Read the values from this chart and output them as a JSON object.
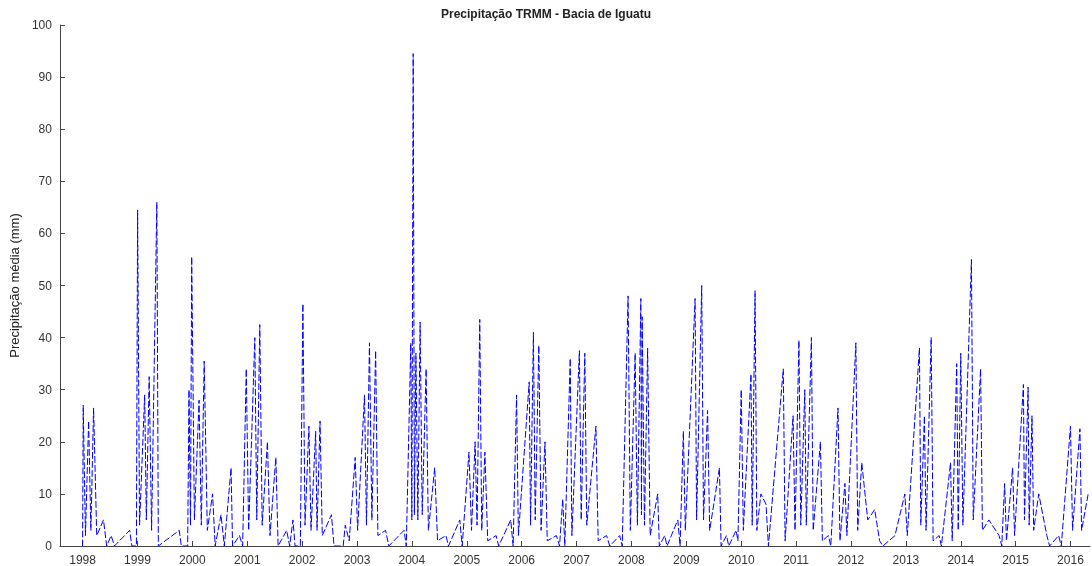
{
  "chart_data": {
    "type": "line",
    "title": "Precipitação TRMM - Bacia de Iguatu",
    "ylabel": "Precipitação média (mm)",
    "xlim": [
      "1997-08-03",
      "2016-05-10"
    ],
    "xticks": [
      "1998",
      "1999",
      "2000",
      "2001",
      "2002",
      "2003",
      "2004",
      "2005",
      "2006",
      "2007",
      "2008",
      "2009",
      "2010",
      "2011",
      "2012",
      "2013",
      "2014",
      "2015",
      "2016"
    ],
    "ylim": [
      0,
      100
    ],
    "yticks": [
      0,
      10,
      20,
      30,
      40,
      50,
      60,
      70,
      80,
      90,
      100
    ],
    "line_style": "dashed",
    "marker": "none",
    "series": [
      {
        "color": "#0000ff",
        "x": [
          "1998-01-01",
          "1998-01-05",
          "1998-01-20",
          "1998-02-10",
          "1998-02-25",
          "1998-03-15",
          "1998-04-05",
          "1998-05-20",
          "1998-06-10",
          "1998-07-10",
          "1998-08-01",
          "1998-11-10",
          "1998-11-25",
          "1998-12-25",
          "1999-01-02",
          "1999-01-15",
          "1999-02-18",
          "1999-03-01",
          "1999-03-20",
          "1999-04-05",
          "1999-05-10",
          "1999-05-20",
          "1999-10-06",
          "1999-10-20",
          "1999-12-01",
          "1999-12-10",
          "1999-12-20",
          "1999-12-28",
          "2000-01-15",
          "2000-02-15",
          "2000-03-01",
          "2000-03-20",
          "2000-04-10",
          "2000-05-15",
          "2000-06-01",
          "2000-07-10",
          "2000-08-01",
          "2000-09-15",
          "2000-09-25",
          "2000-11-10",
          "2000-12-01",
          "2000-12-25",
          "2001-01-10",
          "2001-02-20",
          "2001-03-05",
          "2001-03-25",
          "2001-04-10",
          "2001-05-15",
          "2001-06-01",
          "2001-07-10",
          "2001-07-25",
          "2001-09-20",
          "2001-10-10",
          "2001-11-01",
          "2001-11-15",
          "2001-12-20",
          "2002-01-06",
          "2002-01-20",
          "2002-02-15",
          "2002-03-01",
          "2002-04-01",
          "2002-04-10",
          "2002-04-30",
          "2002-05-15",
          "2002-07-15",
          "2002-08-01",
          "2002-10-01",
          "2002-10-15",
          "2002-11-10",
          "2002-12-20",
          "2003-01-05",
          "2003-02-20",
          "2003-03-05",
          "2003-03-25",
          "2003-04-10",
          "2003-05-05",
          "2003-05-20",
          "2003-07-10",
          "2003-08-01",
          "2003-11-10",
          "2003-11-25",
          "2003-12-25",
          "2004-01-01",
          "2004-01-10",
          "2004-01-18",
          "2004-01-28",
          "2004-02-10",
          "2004-02-25",
          "2004-03-10",
          "2004-04-05",
          "2004-04-20",
          "2004-06-01",
          "2004-06-20",
          "2004-08-15",
          "2004-09-01",
          "2004-11-15",
          "2004-12-01",
          "2005-01-15",
          "2005-02-01",
          "2005-02-25",
          "2005-03-10",
          "2005-03-28",
          "2005-04-10",
          "2005-05-01",
          "2005-05-20",
          "2005-07-15",
          "2005-08-01",
          "2005-10-20",
          "2005-11-05",
          "2005-11-28",
          "2005-12-10",
          "2006-02-20",
          "2006-03-01",
          "2006-03-20",
          "2006-04-01",
          "2006-04-25",
          "2006-05-10",
          "2006-06-05",
          "2006-06-20",
          "2006-08-20",
          "2006-09-10",
          "2006-10-01",
          "2006-10-15",
          "2006-11-20",
          "2006-12-01",
          "2007-01-20",
          "2007-02-01",
          "2007-02-25",
          "2007-03-10",
          "2007-05-10",
          "2007-05-25",
          "2007-07-20",
          "2007-08-10",
          "2007-10-15",
          "2007-11-01",
          "2007-12-10",
          "2007-12-25",
          "2008-01-26",
          "2008-02-10",
          "2008-03-04",
          "2008-03-08",
          "2008-03-13",
          "2008-03-28",
          "2008-04-18",
          "2008-05-05",
          "2008-06-24",
          "2008-07-05",
          "2008-08-10",
          "2008-08-25",
          "2008-11-05",
          "2008-11-20",
          "2008-12-12",
          "2008-12-25",
          "2009-02-28",
          "2009-03-10",
          "2009-04-13",
          "2009-04-25",
          "2009-05-22",
          "2009-06-05",
          "2009-08-09",
          "2009-08-20",
          "2009-09-25",
          "2009-10-10",
          "2009-11-28",
          "2009-12-10",
          "2010-01-01",
          "2010-01-15",
          "2010-03-07",
          "2010-03-15",
          "2010-04-03",
          "2010-04-15",
          "2010-05-12",
          "2010-06-15",
          "2010-07-01",
          "2010-10-08",
          "2010-10-20",
          "2010-12-12",
          "2010-12-25",
          "2011-01-20",
          "2011-02-01",
          "2011-02-28",
          "2011-03-10",
          "2011-04-13",
          "2011-04-25",
          "2011-06-12",
          "2011-06-25",
          "2011-08-04",
          "2011-08-20",
          "2011-10-07",
          "2011-10-20",
          "2011-11-22",
          "2011-12-05",
          "2012-02-03",
          "2012-02-15",
          "2012-03-13",
          "2012-04-22",
          "2012-06-07",
          "2012-07-10",
          "2012-08-01",
          "2012-10-20",
          "2012-12-25",
          "2013-01-10",
          "2013-04-01",
          "2013-04-10",
          "2013-05-04",
          "2013-05-15",
          "2013-06-18",
          "2013-07-01",
          "2013-08-10",
          "2013-08-25",
          "2013-10-25",
          "2013-11-05",
          "2013-12-05",
          "2013-12-15",
          "2014-01-01",
          "2014-01-15",
          "2014-03-13",
          "2014-03-25",
          "2014-05-13",
          "2014-05-25",
          "2014-07-07",
          "2014-09-13",
          "2014-10-01",
          "2014-10-20",
          "2014-11-01",
          "2014-12-12",
          "2014-12-25",
          "2015-02-22",
          "2015-03-01",
          "2015-03-25",
          "2015-04-01",
          "2015-04-20",
          "2015-05-01",
          "2015-06-04",
          "2015-07-28",
          "2015-08-15",
          "2015-10-14",
          "2015-11-01",
          "2016-01-01",
          "2016-01-15",
          "2016-03-04",
          "2016-03-15",
          "2016-04-28"
        ],
        "values": [
          0,
          27,
          2,
          24,
          3,
          26.5,
          2,
          5,
          0,
          2,
          0,
          3,
          0,
          0,
          64.5,
          4,
          29,
          5,
          32.5,
          3,
          66,
          0,
          3,
          0,
          0,
          30,
          4,
          55.5,
          5,
          28,
          4,
          35.5,
          3,
          10,
          0,
          6,
          0,
          15,
          0,
          2,
          0,
          34,
          3,
          40,
          5,
          42.5,
          4,
          20,
          2,
          17,
          0,
          3,
          0,
          5,
          0,
          0,
          46.5,
          4,
          23,
          3,
          22,
          3,
          24,
          2,
          6,
          0,
          0,
          4,
          1,
          17,
          3,
          29,
          4,
          39,
          5,
          37.5,
          2,
          3,
          0,
          3,
          0,
          39,
          5,
          94.5,
          6,
          37,
          5,
          43,
          6,
          34,
          3,
          15,
          1,
          2,
          0,
          5,
          0,
          18,
          3,
          20,
          4,
          43.5,
          3,
          18,
          1,
          2,
          0,
          5,
          0,
          29,
          2,
          31.5,
          4,
          41,
          5,
          38.5,
          3,
          20,
          1,
          2,
          0,
          9,
          0,
          36,
          2,
          37.5,
          5,
          37,
          4,
          23,
          1,
          2,
          0,
          2,
          0,
          48,
          3,
          37,
          4,
          47.5,
          6,
          44,
          4,
          38,
          2,
          10,
          0,
          2,
          0,
          5,
          0,
          22,
          3,
          47.5,
          5,
          50,
          5,
          26,
          3,
          15,
          0,
          2,
          0,
          3,
          1,
          30,
          3,
          33,
          4,
          49,
          3,
          10,
          8,
          0,
          34,
          1,
          25,
          3,
          39.5,
          4,
          30,
          4,
          40,
          3,
          20,
          1,
          2,
          0,
          26.5,
          1,
          12,
          2,
          39,
          3,
          16,
          5,
          7,
          1,
          0,
          2,
          10,
          2,
          38,
          4,
          25,
          3,
          40,
          1,
          2,
          0,
          16,
          1,
          35,
          3,
          37,
          4,
          55,
          5,
          34,
          3,
          5,
          2,
          0,
          12,
          1,
          15,
          2,
          31,
          5,
          30.5,
          4,
          25,
          3,
          10,
          2,
          0,
          2,
          0,
          23,
          3,
          22.5,
          3,
          10
        ]
      }
    ]
  }
}
